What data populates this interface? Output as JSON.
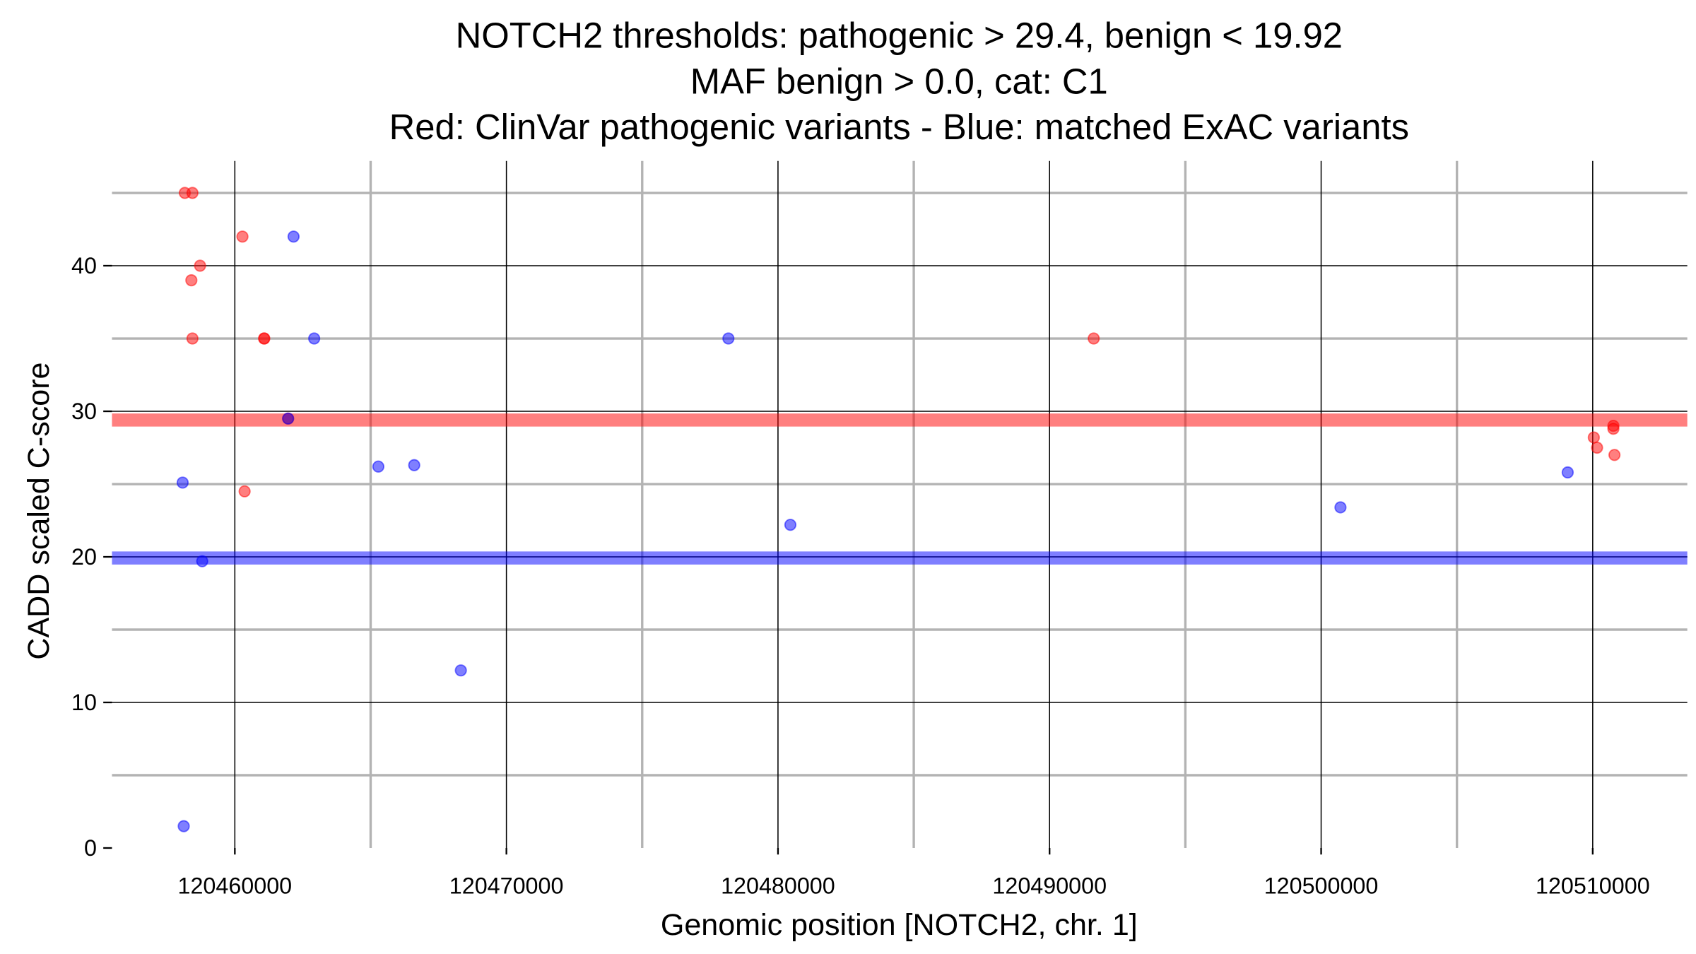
{
  "chart_data": {
    "type": "scatter",
    "title_lines": [
      "NOTCH2 thresholds: pathogenic > 29.4, benign < 19.92",
      "MAF benign > 0.0, cat: C1",
      "Red: ClinVar pathogenic variants - Blue: matched ExAC variants"
    ],
    "xlabel": "Genomic position [NOTCH2, chr. 1]",
    "ylabel": "CADD scaled C-score",
    "xlim": [
      120455476,
      120513483
    ],
    "ylim": [
      0,
      47.2
    ],
    "xticks": [
      120460000,
      120470000,
      120480000,
      120490000,
      120500000,
      120510000
    ],
    "xtick_labels": [
      "120460000",
      "120470000",
      "120480000",
      "120490000",
      "120500000",
      "120510000"
    ],
    "yticks": [
      0,
      10,
      20,
      30,
      40
    ],
    "ytick_labels": [
      "0",
      "10",
      "20",
      "30",
      "40"
    ],
    "grid": true,
    "thresholds": [
      {
        "name": "pathogenic",
        "value": 29.4,
        "color": "#ff0000"
      },
      {
        "name": "benign",
        "value": 19.92,
        "color": "#0000ff"
      }
    ],
    "series": [
      {
        "name": "ClinVar pathogenic variants",
        "color": "#ff0000",
        "points": [
          [
            120458158,
            45
          ],
          [
            120458439,
            45
          ],
          [
            120460280,
            42
          ],
          [
            120458719,
            40
          ],
          [
            120458399,
            39
          ],
          [
            120458439,
            35
          ],
          [
            120461081,
            35
          ],
          [
            120461081,
            35
          ],
          [
            120461962,
            29.5
          ],
          [
            120460360,
            24.5
          ],
          [
            120491626,
            35
          ],
          [
            120510040,
            28.2
          ],
          [
            120510160,
            27.5
          ],
          [
            120510761,
            29.0
          ],
          [
            120510761,
            28.8
          ],
          [
            120510801,
            27.0
          ]
        ]
      },
      {
        "name": "matched ExAC variants",
        "color": "#0000ff",
        "points": [
          [
            120462162,
            42
          ],
          [
            120462922,
            35
          ],
          [
            120461962,
            29.5
          ],
          [
            120458078,
            25.1
          ],
          [
            120465284,
            26.2
          ],
          [
            120466605,
            26.3
          ],
          [
            120458799,
            19.7
          ],
          [
            120478174,
            35
          ],
          [
            120480456,
            22.2
          ],
          [
            120468322,
            12.2
          ],
          [
            120500712,
            23.4
          ],
          [
            120509079,
            25.8
          ],
          [
            120458118,
            1.5
          ]
        ]
      }
    ]
  }
}
